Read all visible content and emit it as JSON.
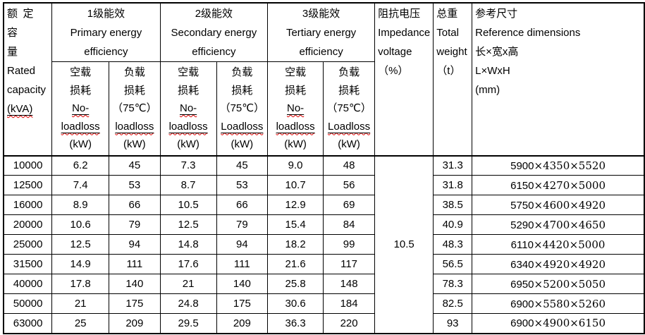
{
  "header": {
    "rated": {
      "line1": "额定容",
      "line2": "量",
      "line3": "Rated",
      "line4": "capacity",
      "line5": "(kVA)"
    },
    "groups": [
      {
        "title": "1级能效",
        "en1": "Primary energy",
        "en2": "efficiency"
      },
      {
        "title": "2级能效",
        "en1": "Secondary energy",
        "en2": "efficiency"
      },
      {
        "title": "3级能效",
        "en1": "Tertiary energy",
        "en2": "efficiency"
      }
    ],
    "subcols": [
      {
        "zh1": "空载",
        "zh2": "损耗",
        "word": "No-loadloss",
        "unit": "(kW)"
      },
      {
        "zh1": "负载",
        "zh2": "损耗",
        "temp": "（75℃）",
        "word": "loadloss",
        "unit": "(kW)"
      },
      {
        "zh1": "空载",
        "zh2": "损耗",
        "word": "No-loadloss",
        "unit": "(kW)"
      },
      {
        "zh1": "负载",
        "zh2": "损耗",
        "temp": "（75℃）",
        "word": "Loadloss",
        "unit": "(kW)"
      },
      {
        "zh1": "空载",
        "zh2": "损耗",
        "word": "No-loadloss",
        "unit": "(kW)"
      },
      {
        "zh1": "负载",
        "zh2": "损耗",
        "temp": "（75℃）",
        "word": "Loadloss",
        "unit": "(kW)"
      }
    ],
    "impedance": {
      "zh": "阻抗电压",
      "en1": "Impedance",
      "en2": "voltage",
      "unit": "（%）"
    },
    "weight": {
      "zh": "总重",
      "en1": "Total",
      "en2": "weight",
      "unit": "（t）"
    },
    "dims": {
      "zh": "参考尺寸",
      "en": "Reference dimensions",
      "zh2": "长×宽x高",
      "en2": "L×WxH",
      "unit": "(mm)"
    }
  },
  "impedance_value": "10.5",
  "rows": [
    {
      "capacity": "10000",
      "e1_noload": "6.2",
      "e1_load": "45",
      "e2_noload": "7.3",
      "e2_load": "45",
      "e3_noload": "9.0",
      "e3_load": "48",
      "weight": "31.3",
      "dims": "5900×4350×5520"
    },
    {
      "capacity": "12500",
      "e1_noload": "7.4",
      "e1_load": "53",
      "e2_noload": "8.7",
      "e2_load": "53",
      "e3_noload": "10.7",
      "e3_load": "56",
      "weight": "31.8",
      "dims": "6150×4270×5000"
    },
    {
      "capacity": "16000",
      "e1_noload": "8.9",
      "e1_load": "66",
      "e2_noload": "10.5",
      "e2_load": "66",
      "e3_noload": "12.9",
      "e3_load": "69",
      "weight": "38.5",
      "dims": "5750×4600×4920"
    },
    {
      "capacity": "20000",
      "e1_noload": "10.6",
      "e1_load": "79",
      "e2_noload": "12.5",
      "e2_load": "79",
      "e3_noload": "15.4",
      "e3_load": "84",
      "weight": "40.9",
      "dims": "5290×4700×4650"
    },
    {
      "capacity": "25000",
      "e1_noload": "12.5",
      "e1_load": "94",
      "e2_noload": "14.8",
      "e2_load": "94",
      "e3_noload": "18.2",
      "e3_load": "99",
      "weight": "48.3",
      "dims": "6110×4420×5000"
    },
    {
      "capacity": "31500",
      "e1_noload": "14.9",
      "e1_load": "111",
      "e2_noload": "17.6",
      "e2_load": "111",
      "e3_noload": "21.6",
      "e3_load": "117",
      "weight": "56.5",
      "dims": "6340×4920×4920"
    },
    {
      "capacity": "40000",
      "e1_noload": "17.8",
      "e1_load": "140",
      "e2_noload": "21",
      "e2_load": "140",
      "e3_noload": "25.8",
      "e3_load": "148",
      "weight": "78.3",
      "dims": "6950×5200×5050"
    },
    {
      "capacity": "50000",
      "e1_noload": "21",
      "e1_load": "175",
      "e2_noload": "24.8",
      "e2_load": "175",
      "e3_noload": "30.6",
      "e3_load": "184",
      "weight": "82.5",
      "dims": "6900×5580×5260"
    },
    {
      "capacity": "63000",
      "e1_noload": "25",
      "e1_load": "209",
      "e2_noload": "29.5",
      "e2_load": "209",
      "e3_noload": "36.3",
      "e3_load": "220",
      "weight": "93",
      "dims": "6900×4900×6150"
    }
  ]
}
